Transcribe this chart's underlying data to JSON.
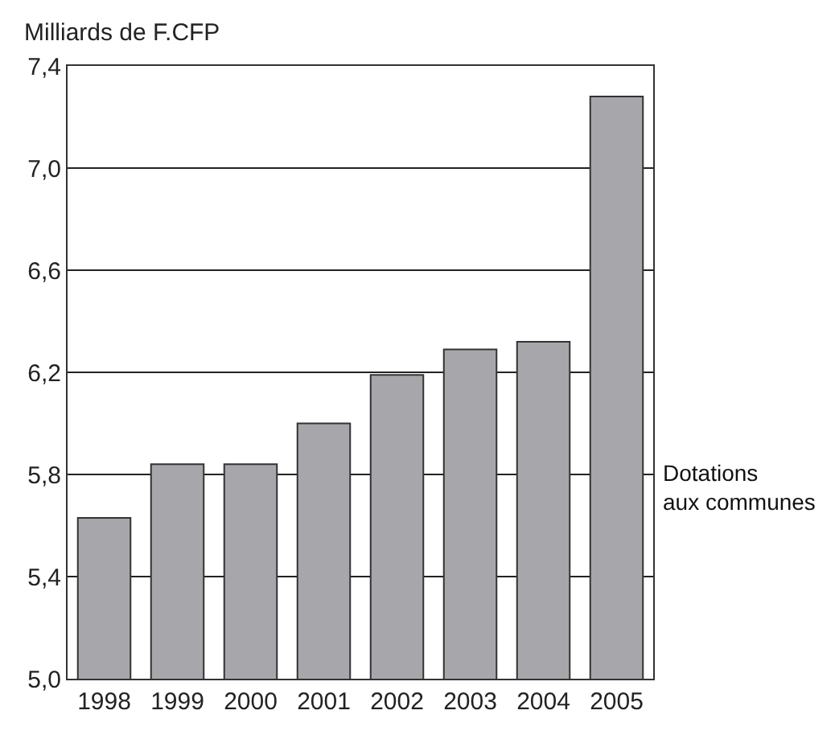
{
  "chart_data": {
    "type": "bar",
    "ylabel": "Milliards de F.CFP",
    "categories": [
      "1998",
      "1999",
      "2000",
      "2001",
      "2002",
      "2003",
      "2004",
      "2005"
    ],
    "series": [
      {
        "name": "Dotations\naux communes",
        "color": "#a7a7ab",
        "values": [
          5.63,
          5.84,
          5.84,
          6.0,
          6.19,
          6.29,
          6.32,
          7.28
        ]
      }
    ],
    "ylim": [
      5.0,
      7.4
    ],
    "yticks": [
      {
        "value": 5.0,
        "label": "5,0"
      },
      {
        "value": 5.4,
        "label": "5,4"
      },
      {
        "value": 5.8,
        "label": "5,8"
      },
      {
        "value": 6.2,
        "label": "6,2"
      },
      {
        "value": 6.6,
        "label": "6,6"
      },
      {
        "value": 7.0,
        "label": "7,0"
      },
      {
        "value": 7.4,
        "label": "7,4"
      }
    ],
    "grid": "y",
    "legend": false
  }
}
